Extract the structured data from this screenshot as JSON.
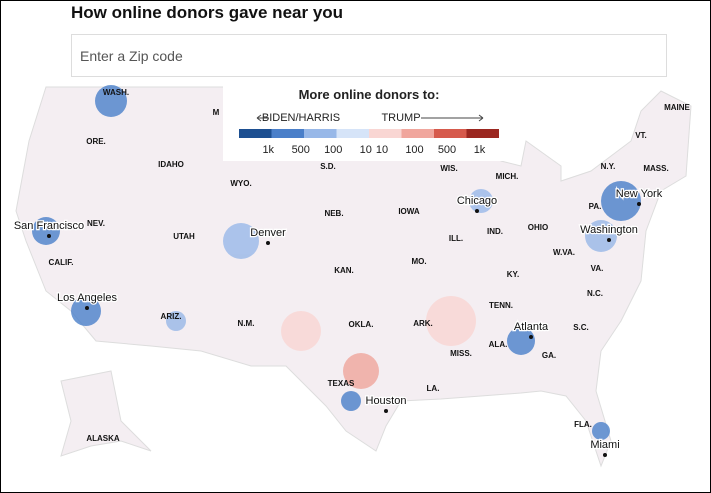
{
  "header": {
    "title": "How online donors gave near you"
  },
  "search": {
    "placeholder": "Enter a Zip code"
  },
  "legend": {
    "title": "More online donors to:",
    "left": "BIDEN/HARRIS",
    "right": "TRUMP",
    "left_labels": [
      "1k",
      "500",
      "100",
      "10"
    ],
    "right_labels": [
      "10",
      "100",
      "500",
      "1k"
    ],
    "left_colors": [
      "#1d4f91",
      "#4a7fc9",
      "#98b8e8",
      "#d6e4f8"
    ],
    "right_colors": [
      "#f9d6d3",
      "#f0a69d",
      "#d65a4c",
      "#9b2720"
    ]
  },
  "states": [
    "WASH.",
    "ORE.",
    "IDAHO",
    "WYO.",
    "S.D.",
    "NEB.",
    "NEV.",
    "UTAH",
    "CALIF.",
    "ARIZ.",
    "N.M.",
    "KAN.",
    "OKLA.",
    "TEXAS",
    "IOWA",
    "MO.",
    "ARK.",
    "LA.",
    "MISS.",
    "ALA.",
    "GA.",
    "FLA.",
    "TENN.",
    "KY.",
    "ILL.",
    "IND.",
    "OHIO",
    "MICH.",
    "WIS.",
    "PA.",
    "N.Y.",
    "VT.",
    "MAINE",
    "MASS.",
    "W.VA.",
    "VA.",
    "N.C.",
    "S.C.",
    "ALASKA",
    "M"
  ],
  "cities": [
    "San Francisco",
    "Los Angeles",
    "Denver",
    "Chicago",
    "New York",
    "Washington",
    "Atlanta",
    "Houston",
    "Miami"
  ]
}
